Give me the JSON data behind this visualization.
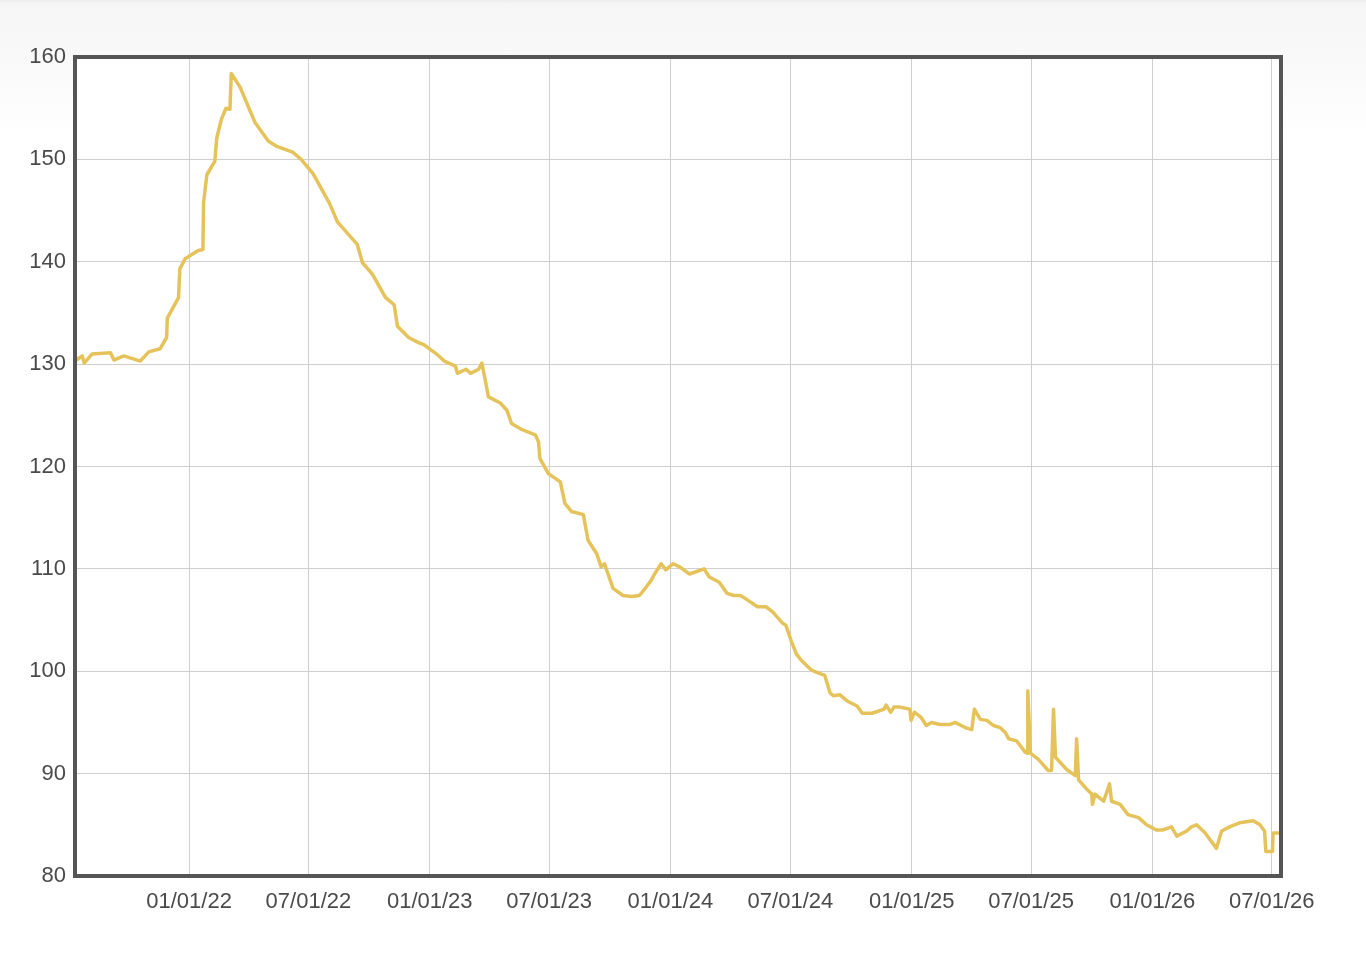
{
  "chart_data": {
    "type": "line",
    "x": [
      "2021-07-14",
      "2021-07-23",
      "2021-07-26",
      "2021-08-07",
      "2021-09-04",
      "2021-09-09",
      "2021-09-24",
      "2021-10-19",
      "2021-11-01",
      "2021-11-18",
      "2021-11-28",
      "2021-11-29",
      "2021-12-16",
      "2021-12-18",
      "2021-12-26",
      "2022-01-15",
      "2022-01-22",
      "2022-01-23",
      "2022-01-28",
      "2022-02-09",
      "2022-02-12",
      "2022-02-19",
      "2022-02-26",
      "2022-03-04",
      "2022-03-06",
      "2022-03-19",
      "2022-04-11",
      "2022-05-01",
      "2022-05-13",
      "2022-06-07",
      "2022-06-20",
      "2022-07-08",
      "2022-08-02",
      "2022-08-14",
      "2022-09-13",
      "2022-09-21",
      "2022-10-06",
      "2022-10-26",
      "2022-11-08",
      "2022-11-13",
      "2022-11-30",
      "2022-12-15",
      "2022-12-23",
      "2023-01-13",
      "2023-01-23",
      "2023-02-09",
      "2023-02-12",
      "2023-02-25",
      "2023-03-04",
      "2023-03-16",
      "2023-03-21",
      "2023-03-26",
      "2023-03-31",
      "2023-04-18",
      "2023-04-28",
      "2023-05-05",
      "2023-05-21",
      "2023-06-10",
      "2023-06-15",
      "2023-06-17",
      "2023-06-30",
      "2023-07-18",
      "2023-07-25",
      "2023-08-04",
      "2023-08-22",
      "2023-08-29",
      "2023-09-11",
      "2023-09-18",
      "2023-09-23",
      "2023-10-06",
      "2023-10-21",
      "2023-11-03",
      "2023-11-15",
      "2023-11-25",
      "2023-12-03",
      "2023-12-08",
      "2023-12-18",
      "2023-12-25",
      "2024-01-05",
      "2024-01-15",
      "2024-01-30",
      "2024-02-21",
      "2024-02-29",
      "2024-03-15",
      "2024-03-27",
      "2024-04-06",
      "2024-04-16",
      "2024-04-26",
      "2024-05-12",
      "2024-05-25",
      "2024-06-04",
      "2024-06-19",
      "2024-06-24",
      "2024-07-02",
      "2024-07-10",
      "2024-07-17",
      "2024-08-02",
      "2024-08-10",
      "2024-08-22",
      "2024-08-30",
      "2024-09-04",
      "2024-09-14",
      "2024-09-25",
      "2024-10-10",
      "2024-10-18",
      "2024-11-02",
      "2024-11-20",
      "2024-11-23",
      "2024-11-30",
      "2024-12-05",
      "2024-12-13",
      "2024-12-29",
      "2024-12-31",
      "2025-01-05",
      "2025-01-15",
      "2025-01-23",
      "2025-01-31",
      "2025-02-13",
      "2025-02-28",
      "2025-03-08",
      "2025-03-23",
      "2025-04-02",
      "2025-04-06",
      "2025-04-15",
      "2025-04-25",
      "2025-05-05",
      "2025-05-15",
      "2025-05-23",
      "2025-05-28",
      "2025-06-09",
      "2025-06-22",
      "2025-06-25",
      "2025-06-26",
      "2025-06-30",
      "2025-07-12",
      "2025-07-27",
      "2025-08-01",
      "2025-08-04",
      "2025-08-07",
      "2025-08-24",
      "2025-09-06",
      "2025-09-08",
      "2025-09-11",
      "2025-09-23",
      "2025-10-01",
      "2025-10-02",
      "2025-10-06",
      "2025-10-19",
      "2025-10-28",
      "2025-10-31",
      "2025-11-13",
      "2025-11-25",
      "2025-12-11",
      "2025-12-23",
      "2026-01-07",
      "2026-01-17",
      "2026-01-30",
      "2026-02-07",
      "2026-02-22",
      "2026-03-01",
      "2026-03-09",
      "2026-03-22",
      "2026-04-08",
      "2026-04-16",
      "2026-04-28",
      "2026-05-13",
      "2026-06-03",
      "2026-06-13",
      "2026-06-20",
      "2026-06-22",
      "2026-07-02",
      "2026-07-03",
      "2026-07-13"
    ],
    "values": [
      130.4,
      130.8,
      130.1,
      131.0,
      131.1,
      130.4,
      130.8,
      130.3,
      131.2,
      131.5,
      132.6,
      134.5,
      136.5,
      139.3,
      140.3,
      141.1,
      141.2,
      145.8,
      148.5,
      149.8,
      152.1,
      153.9,
      155.0,
      154.9,
      158.4,
      157.1,
      153.6,
      151.8,
      151.3,
      150.7,
      150.0,
      148.6,
      145.7,
      143.9,
      141.7,
      139.9,
      138.8,
      136.5,
      135.8,
      133.7,
      132.6,
      132.1,
      131.9,
      130.9,
      130.3,
      129.8,
      129.1,
      129.5,
      129.1,
      129.5,
      130.1,
      128.5,
      126.8,
      126.2,
      125.5,
      124.2,
      123.6,
      123.1,
      122.4,
      120.8,
      119.3,
      118.5,
      116.4,
      115.6,
      115.3,
      112.8,
      111.5,
      110.2,
      110.5,
      108.1,
      107.4,
      107.3,
      107.4,
      108.2,
      108.9,
      109.5,
      110.5,
      109.9,
      110.5,
      110.2,
      109.5,
      110.0,
      109.2,
      108.7,
      107.6,
      107.4,
      107.4,
      107.0,
      106.3,
      106.3,
      105.8,
      104.7,
      104.5,
      103.0,
      101.7,
      101.1,
      100.1,
      99.9,
      99.6,
      97.9,
      97.6,
      97.7,
      97.1,
      96.6,
      95.9,
      95.9,
      96.3,
      96.7,
      96.0,
      96.5,
      96.5,
      96.3,
      95.2,
      96.0,
      95.5,
      94.7,
      95.0,
      94.8,
      94.8,
      95.0,
      94.5,
      94.3,
      96.3,
      95.3,
      95.2,
      94.7,
      94.5,
      94.0,
      93.4,
      93.2,
      92.1,
      92.0,
      98.1,
      92.0,
      91.4,
      90.3,
      90.3,
      96.3,
      91.6,
      90.4,
      89.8,
      93.4,
      89.4,
      88.5,
      88.0,
      87.0,
      88.0,
      87.3,
      89.0,
      87.3,
      87.0,
      86.0,
      85.7,
      85.0,
      84.5,
      84.5,
      84.8,
      83.9,
      84.4,
      84.8,
      85.0,
      84.2,
      82.7,
      84.4,
      84.8,
      85.2,
      85.4,
      85.0,
      84.4,
      82.4,
      82.4,
      84.2,
      84.2
    ],
    "color": "#e6c35a",
    "xlim": [
      "2021-07-12",
      "2026-07-15"
    ],
    "xticks": [
      {
        "value": "2022-01-01",
        "label": "01/01/22"
      },
      {
        "value": "2022-07-01",
        "label": "07/01/22"
      },
      {
        "value": "2023-01-01",
        "label": "01/01/23"
      },
      {
        "value": "2023-07-01",
        "label": "07/01/23"
      },
      {
        "value": "2024-01-01",
        "label": "01/01/24"
      },
      {
        "value": "2024-07-01",
        "label": "07/01/24"
      },
      {
        "value": "2025-01-01",
        "label": "01/01/25"
      },
      {
        "value": "2025-07-01",
        "label": "07/01/25"
      },
      {
        "value": "2026-01-01",
        "label": "01/01/26"
      },
      {
        "value": "2026-07-01",
        "label": "07/01/26"
      }
    ],
    "ylim": [
      80,
      160
    ],
    "yticks": [
      80,
      90,
      100,
      110,
      120,
      130,
      140,
      150,
      160
    ],
    "grid": true
  }
}
